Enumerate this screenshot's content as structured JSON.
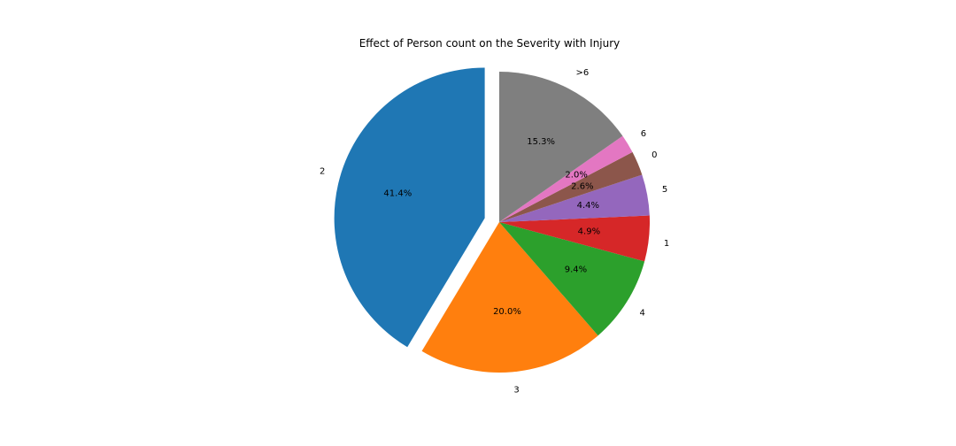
{
  "chart_data": {
    "type": "pie",
    "title": "Effect of Person count on the Severity with Injury",
    "start_angle_deg": 90,
    "direction": "counterclockwise",
    "exploded": [
      "2"
    ],
    "slices": [
      {
        "label": "2",
        "value": 41.4,
        "pct_label": "41.4%",
        "color": "#1f77b4"
      },
      {
        "label": "3",
        "value": 20.0,
        "pct_label": "20.0%",
        "color": "#ff7f0e"
      },
      {
        "label": "4",
        "value": 9.4,
        "pct_label": "9.4%",
        "color": "#2ca02c"
      },
      {
        "label": "1",
        "value": 4.9,
        "pct_label": "4.9%",
        "color": "#d62728"
      },
      {
        "label": "5",
        "value": 4.4,
        "pct_label": "4.4%",
        "color": "#9467bd"
      },
      {
        "label": "0",
        "value": 2.6,
        "pct_label": "2.6%",
        "color": "#8c564b"
      },
      {
        "label": "6",
        "value": 2.0,
        "pct_label": "2.0%",
        "color": "#e377c2"
      },
      {
        "label": ">6",
        "value": 15.3,
        "pct_label": "15.3%",
        "color": "#7f7f7f"
      }
    ]
  }
}
